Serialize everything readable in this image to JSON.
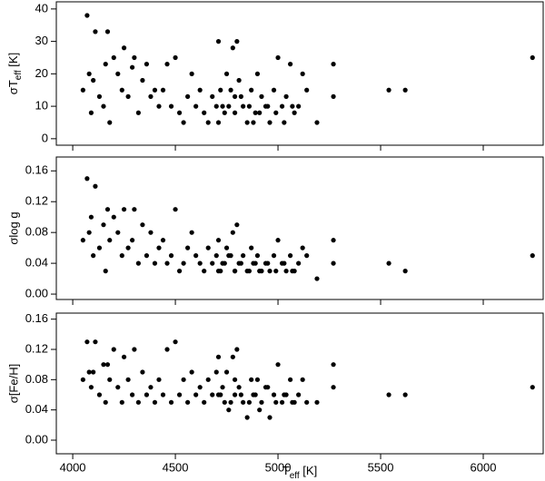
{
  "chart_data": [
    {
      "type": "scatter",
      "color": "#000000",
      "ylabel": {
        "main": "σT",
        "sub": "eff",
        "rest": " [K]"
      },
      "xlim": [
        3920,
        6292
      ],
      "xticks": [
        4000,
        4500,
        5000,
        5500,
        6000
      ],
      "ylim": [
        -2,
        42.2
      ],
      "yticks": [
        0,
        10,
        20,
        30,
        40
      ],
      "x": [
        4050,
        4070,
        4080,
        4090,
        4100,
        4110,
        4130,
        4150,
        4160,
        4170,
        4180,
        4200,
        4220,
        4240,
        4250,
        4270,
        4290,
        4300,
        4320,
        4340,
        4360,
        4380,
        4400,
        4420,
        4440,
        4460,
        4480,
        4500,
        4520,
        4540,
        4560,
        4580,
        4600,
        4620,
        4640,
        4660,
        4680,
        4700,
        4710,
        4720,
        4740,
        4750,
        4760,
        4780,
        4790,
        4800,
        4810,
        4830,
        4850,
        4870,
        4890,
        4900,
        4920,
        4940,
        4960,
        4980,
        5000,
        5020,
        5040,
        5060,
        5080,
        5100,
        5120,
        5140,
        5190,
        5270,
        5270,
        5540,
        5620,
        6240,
        4710,
        4730,
        4770,
        4790,
        4820,
        4860,
        4880,
        4910,
        4950,
        4990,
        5030,
        5070
      ],
      "values": [
        15,
        38,
        20,
        8,
        18,
        33,
        13,
        10,
        23,
        33,
        5,
        25,
        20,
        15,
        28,
        13,
        22,
        25,
        8,
        18,
        23,
        13,
        15,
        10,
        15,
        23,
        10,
        25,
        8,
        5,
        13,
        20,
        10,
        15,
        8,
        5,
        13,
        10,
        30,
        15,
        8,
        20,
        10,
        28,
        13,
        30,
        18,
        10,
        5,
        15,
        8,
        20,
        13,
        10,
        5,
        15,
        25,
        10,
        13,
        23,
        8,
        10,
        20,
        15,
        5,
        23,
        13,
        15,
        15,
        25,
        5,
        10,
        15,
        8,
        13,
        10,
        5,
        8,
        10,
        8,
        5,
        10
      ]
    },
    {
      "type": "scatter",
      "color": "#000000",
      "ylabel": "σlog g",
      "xlim": [
        3920,
        6292
      ],
      "xticks": [
        4000,
        4500,
        5000,
        5500,
        6000
      ],
      "ylim": [
        -0.007,
        0.178
      ],
      "yticks": [
        {
          "value": 0,
          "label": "0.00"
        },
        0.04,
        0.08,
        0.12,
        0.16
      ],
      "x": [
        4050,
        4070,
        4080,
        4090,
        4100,
        4110,
        4130,
        4150,
        4160,
        4170,
        4180,
        4200,
        4220,
        4240,
        4250,
        4270,
        4290,
        4300,
        4320,
        4340,
        4360,
        4380,
        4400,
        4420,
        4440,
        4460,
        4480,
        4500,
        4520,
        4540,
        4560,
        4580,
        4600,
        4620,
        4640,
        4660,
        4680,
        4700,
        4710,
        4720,
        4740,
        4750,
        4760,
        4780,
        4790,
        4800,
        4810,
        4830,
        4850,
        4870,
        4890,
        4900,
        4920,
        4940,
        4960,
        4980,
        5000,
        5020,
        5040,
        5060,
        5080,
        5100,
        5120,
        5140,
        5190,
        5270,
        5270,
        5540,
        5620,
        6240,
        4710,
        4730,
        4770,
        4790,
        4820,
        4860,
        4880,
        4910,
        4950,
        4990,
        5030,
        5070
      ],
      "values": [
        0.07,
        0.15,
        0.08,
        0.1,
        0.05,
        0.14,
        0.06,
        0.09,
        0.03,
        0.11,
        0.07,
        0.1,
        0.08,
        0.05,
        0.11,
        0.06,
        0.07,
        0.11,
        0.04,
        0.09,
        0.05,
        0.08,
        0.04,
        0.06,
        0.07,
        0.04,
        0.05,
        0.11,
        0.03,
        0.04,
        0.06,
        0.08,
        0.05,
        0.04,
        0.03,
        0.06,
        0.04,
        0.05,
        0.07,
        0.03,
        0.04,
        0.06,
        0.05,
        0.08,
        0.03,
        0.09,
        0.04,
        0.05,
        0.03,
        0.06,
        0.04,
        0.05,
        0.03,
        0.04,
        0.03,
        0.05,
        0.07,
        0.04,
        0.03,
        0.05,
        0.03,
        0.04,
        0.06,
        0.05,
        0.02,
        0.07,
        0.04,
        0.04,
        0.03,
        0.05,
        0.03,
        0.04,
        0.05,
        0.03,
        0.04,
        0.03,
        0.04,
        0.03,
        0.04,
        0.03,
        0.04,
        0.03
      ]
    },
    {
      "type": "scatter",
      "color": "#000000",
      "ylabel": "σ[Fe/H]",
      "xlabel": {
        "main": "T",
        "sub": "eff",
        "rest": " [K]"
      },
      "xlim": [
        3920,
        6292
      ],
      "xticks": [
        4000,
        4500,
        5000,
        5500,
        6000
      ],
      "ylim": [
        -0.018,
        0.168
      ],
      "yticks": [
        {
          "value": 0,
          "label": "0.00"
        },
        0.04,
        0.08,
        0.12,
        0.16
      ],
      "x": [
        4050,
        4070,
        4080,
        4090,
        4100,
        4110,
        4130,
        4150,
        4160,
        4170,
        4180,
        4200,
        4220,
        4240,
        4250,
        4270,
        4290,
        4300,
        4320,
        4340,
        4360,
        4380,
        4400,
        4420,
        4440,
        4460,
        4480,
        4500,
        4520,
        4540,
        4560,
        4580,
        4600,
        4620,
        4640,
        4660,
        4680,
        4700,
        4710,
        4720,
        4740,
        4750,
        4760,
        4780,
        4790,
        4800,
        4810,
        4830,
        4850,
        4870,
        4890,
        4900,
        4920,
        4940,
        4960,
        4980,
        5000,
        5020,
        5040,
        5060,
        5080,
        5100,
        5120,
        5140,
        5190,
        5270,
        5270,
        5540,
        5620,
        6240,
        4710,
        4730,
        4770,
        4790,
        4820,
        4860,
        4880,
        4910,
        4950,
        4990,
        5030,
        5070
      ],
      "values": [
        0.08,
        0.13,
        0.09,
        0.07,
        0.09,
        0.13,
        0.06,
        0.1,
        0.05,
        0.1,
        0.08,
        0.12,
        0.07,
        0.05,
        0.11,
        0.08,
        0.06,
        0.12,
        0.05,
        0.09,
        0.06,
        0.07,
        0.05,
        0.08,
        0.06,
        0.12,
        0.05,
        0.13,
        0.06,
        0.08,
        0.05,
        0.09,
        0.06,
        0.07,
        0.05,
        0.08,
        0.06,
        0.09,
        0.11,
        0.06,
        0.05,
        0.09,
        0.04,
        0.11,
        0.06,
        0.12,
        0.07,
        0.05,
        0.03,
        0.08,
        0.06,
        0.08,
        0.05,
        0.07,
        0.03,
        0.06,
        0.1,
        0.05,
        0.06,
        0.08,
        0.05,
        0.06,
        0.08,
        0.05,
        0.05,
        0.1,
        0.07,
        0.06,
        0.06,
        0.07,
        0.06,
        0.07,
        0.05,
        0.08,
        0.06,
        0.05,
        0.06,
        0.04,
        0.07,
        0.05,
        0.06,
        0.05
      ]
    }
  ]
}
